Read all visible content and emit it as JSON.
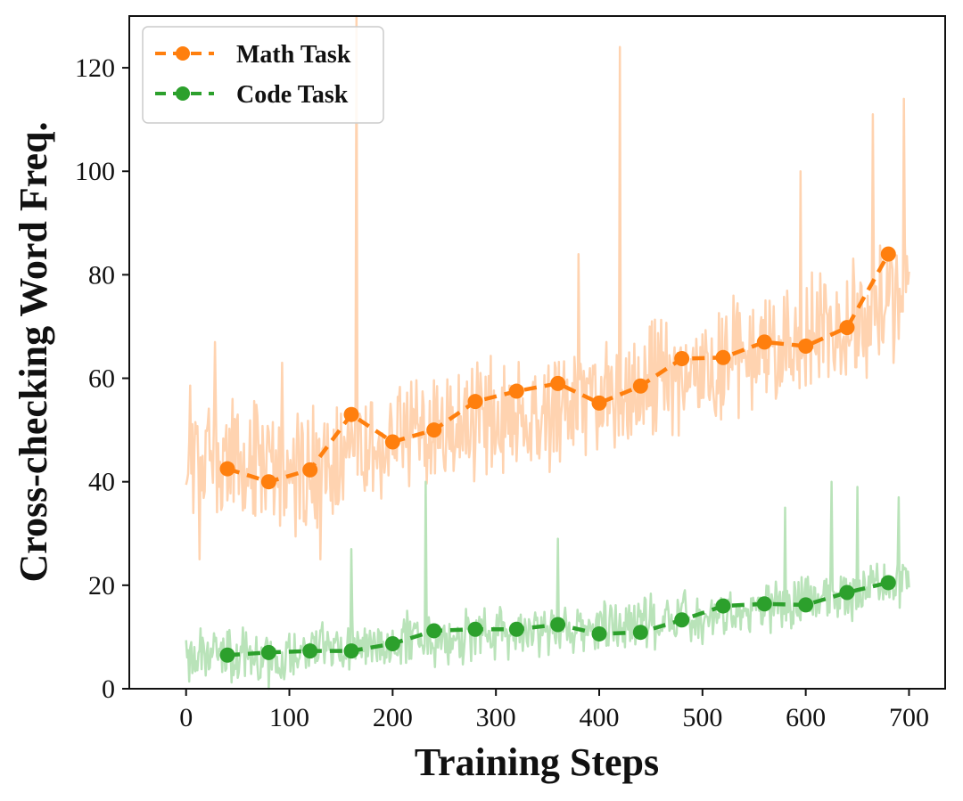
{
  "chart_data": {
    "type": "line",
    "xlabel": "Training Steps",
    "ylabel": "Cross-checking Word Freq.",
    "xlim": [
      -55,
      735
    ],
    "ylim": [
      0,
      130
    ],
    "xticks": [
      0,
      100,
      200,
      300,
      400,
      500,
      600,
      700
    ],
    "yticks": [
      0,
      20,
      40,
      60,
      80,
      100,
      120
    ],
    "legend_position": "top-left",
    "series": [
      {
        "name": "Math Task",
        "color": "#ff7f0e",
        "raw_color": "#ffd3b0",
        "style": "dashed-marker",
        "x": [
          40,
          80,
          120,
          160,
          200,
          240,
          280,
          320,
          360,
          400,
          440,
          480,
          520,
          560,
          600,
          640,
          680
        ],
        "values": [
          42.5,
          40,
          42.3,
          53,
          47.7,
          50,
          55.5,
          57.5,
          59,
          55.2,
          58.5,
          63.8,
          64,
          67,
          66.2,
          69.8,
          84
        ],
        "raw_trend": [
          [
            0,
            46
          ],
          [
            100,
            41
          ],
          [
            160,
            44
          ],
          [
            200,
            48
          ],
          [
            300,
            53
          ],
          [
            400,
            56
          ],
          [
            500,
            62
          ],
          [
            600,
            68
          ],
          [
            700,
            76
          ]
        ],
        "raw_noise": 9,
        "raw_spikes": [
          [
            165,
            135
          ],
          [
            420,
            124
          ],
          [
            380,
            84
          ],
          [
            595,
            100
          ],
          [
            695,
            114
          ],
          [
            665,
            111
          ],
          [
            13,
            25
          ],
          [
            130,
            25
          ],
          [
            93,
            63
          ],
          [
            28,
            67
          ]
        ]
      },
      {
        "name": "Code Task",
        "color": "#2ca02c",
        "raw_color": "#b9e3b9",
        "style": "dashed-marker",
        "x": [
          40,
          80,
          120,
          160,
          200,
          240,
          280,
          320,
          360,
          400,
          440,
          480,
          520,
          560,
          600,
          640,
          680
        ],
        "values": [
          6.5,
          7,
          7.3,
          7.3,
          8.7,
          11.2,
          11.5,
          11.5,
          12.4,
          10.6,
          10.9,
          13.3,
          16,
          16.4,
          16.2,
          18.6,
          20.5
        ],
        "raw_trend": [
          [
            0,
            6
          ],
          [
            100,
            7
          ],
          [
            200,
            9
          ],
          [
            300,
            11
          ],
          [
            400,
            12
          ],
          [
            500,
            14
          ],
          [
            600,
            17
          ],
          [
            700,
            21
          ]
        ],
        "raw_noise": 4,
        "raw_spikes": [
          [
            160,
            27
          ],
          [
            232,
            40
          ],
          [
            360,
            29
          ],
          [
            625,
            40
          ],
          [
            650,
            39
          ],
          [
            580,
            35
          ],
          [
            690,
            37
          ],
          [
            80,
            0
          ]
        ]
      }
    ]
  }
}
